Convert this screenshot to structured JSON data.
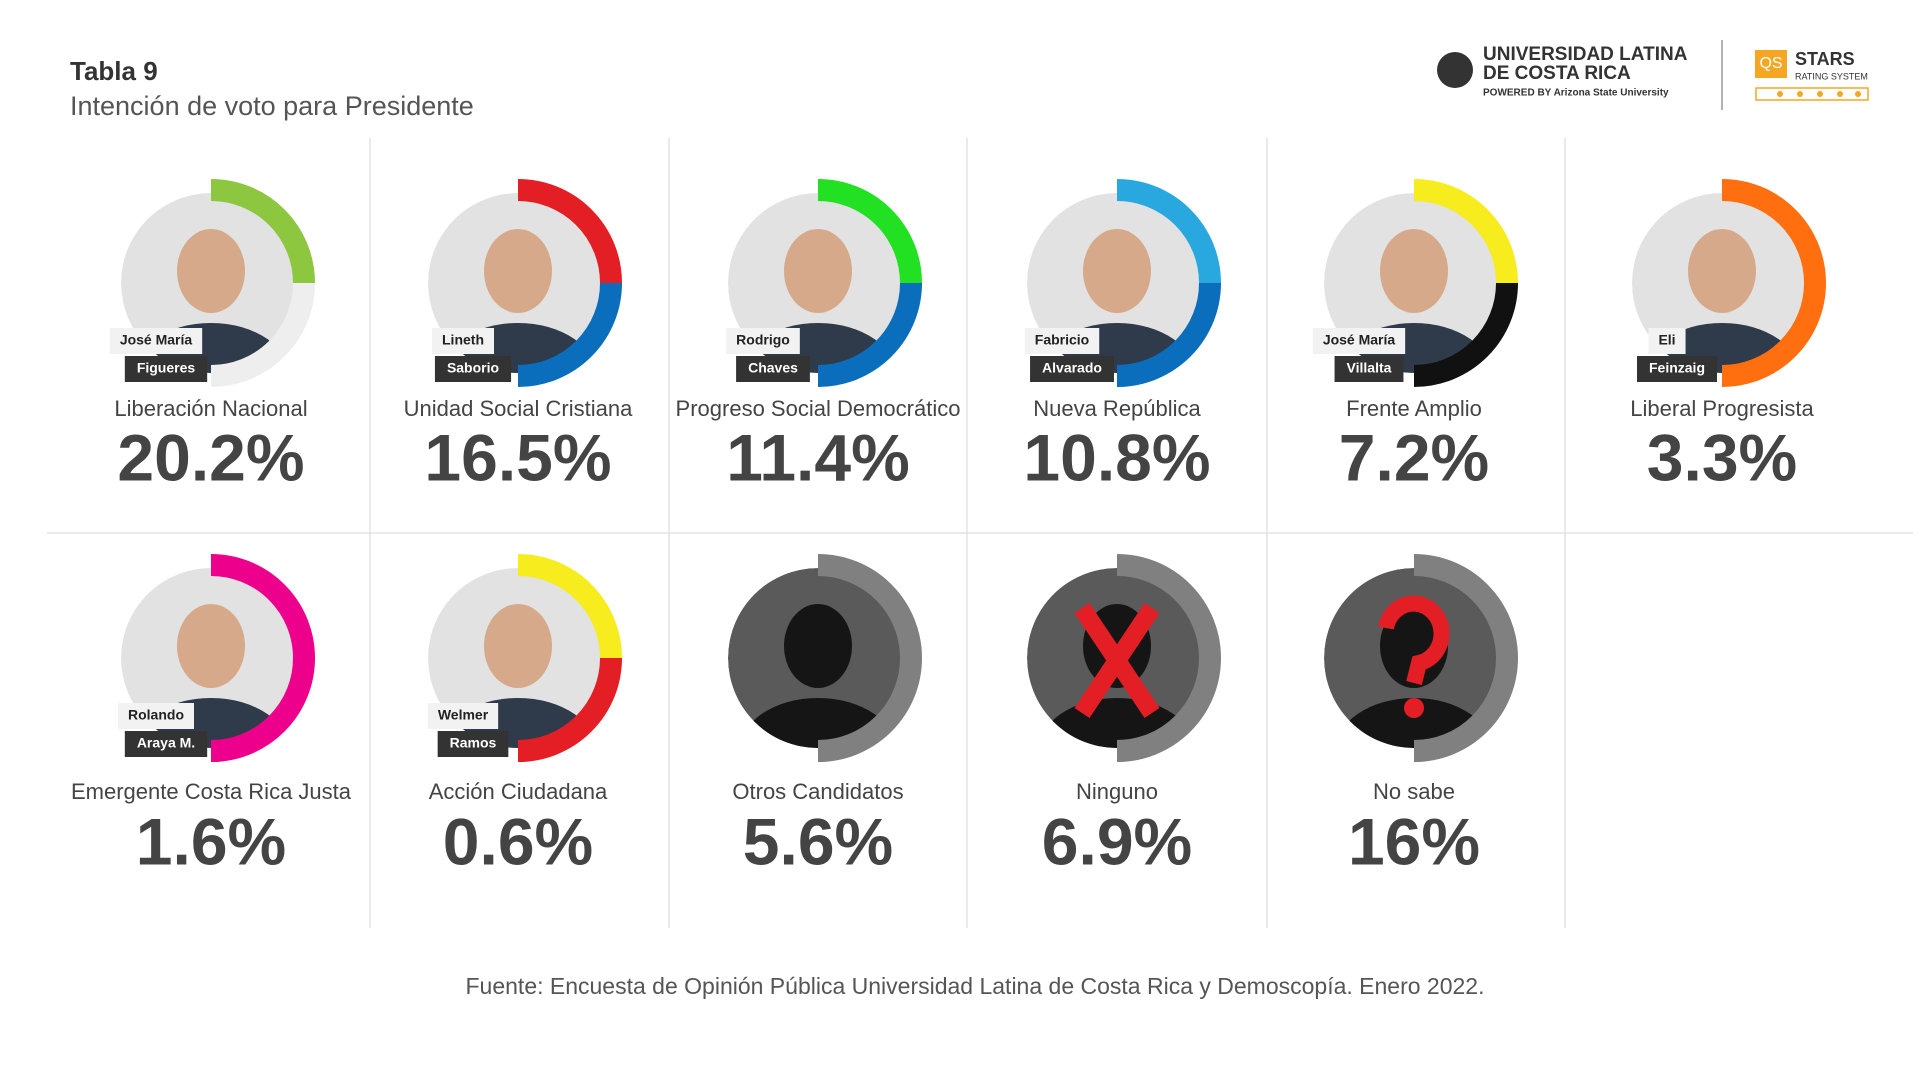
{
  "header": {
    "title": "Tabla 9",
    "subtitle": "Intención de voto para Presidente"
  },
  "logo": {
    "line1": "UNIVERSIDAD LATINA",
    "line2": "DE COSTA RICA",
    "powered": "POWERED BY Arizona State University",
    "qs": "QS",
    "stars": "STARS",
    "rating": "RATING SYSTEM"
  },
  "cards": [
    {
      "first_name": "José María",
      "last_name": "Figueres",
      "party": "Liberación Nacional",
      "value": "20.2%",
      "ring": [
        "#8dc63f",
        "#eeeeee"
      ]
    },
    {
      "first_name": "Lineth",
      "last_name": "Saborio",
      "party": "Unidad Social Cristiana",
      "value": "16.5%",
      "ring": [
        "#e31e24",
        "#0a6ebd"
      ]
    },
    {
      "first_name": "Rodrigo",
      "last_name": "Chaves",
      "party": "Progreso Social Democrático",
      "value": "11.4%",
      "ring": [
        "#22e022",
        "#0a6ebd"
      ]
    },
    {
      "first_name": "Fabricio",
      "last_name": "Alvarado",
      "party": "Nueva República",
      "value": "10.8%",
      "ring": [
        "#29a8e0",
        "#0a6ebd"
      ]
    },
    {
      "first_name": "José María",
      "last_name": "Villalta",
      "party": "Frente Amplio",
      "value": "7.2%",
      "ring": [
        "#f7ec1e",
        "#111111"
      ]
    },
    {
      "first_name": "Eli",
      "last_name": "Feinzaig",
      "party": "Liberal Progresista",
      "value": "3.3%",
      "ring": [
        "#ff6f0f",
        "#ff6f0f"
      ]
    },
    {
      "first_name": "Rolando",
      "last_name": "Araya M.",
      "party": "Emergente Costa Rica Justa",
      "value": "1.6%",
      "ring": [
        "#ec008c",
        "#ec008c"
      ]
    },
    {
      "first_name": "Welmer",
      "last_name": "Ramos",
      "party": "Acción Ciudadana",
      "value": "0.6%",
      "ring": [
        "#f7ec1e",
        "#e31e24"
      ]
    },
    {
      "party": "Otros Candidatos",
      "value": "5.6%",
      "ring": [
        "#808080",
        "#808080"
      ]
    },
    {
      "party": "Ninguno",
      "value": "6.9%",
      "ring": [
        "#808080",
        "#808080"
      ]
    },
    {
      "party": "No sabe",
      "value": "16%",
      "ring": [
        "#808080",
        "#808080"
      ]
    }
  ],
  "footer": "Fuente: Encuesta de Opinión Pública Universidad Latina de Costa Rica y Demoscopía. Enero 2022."
}
